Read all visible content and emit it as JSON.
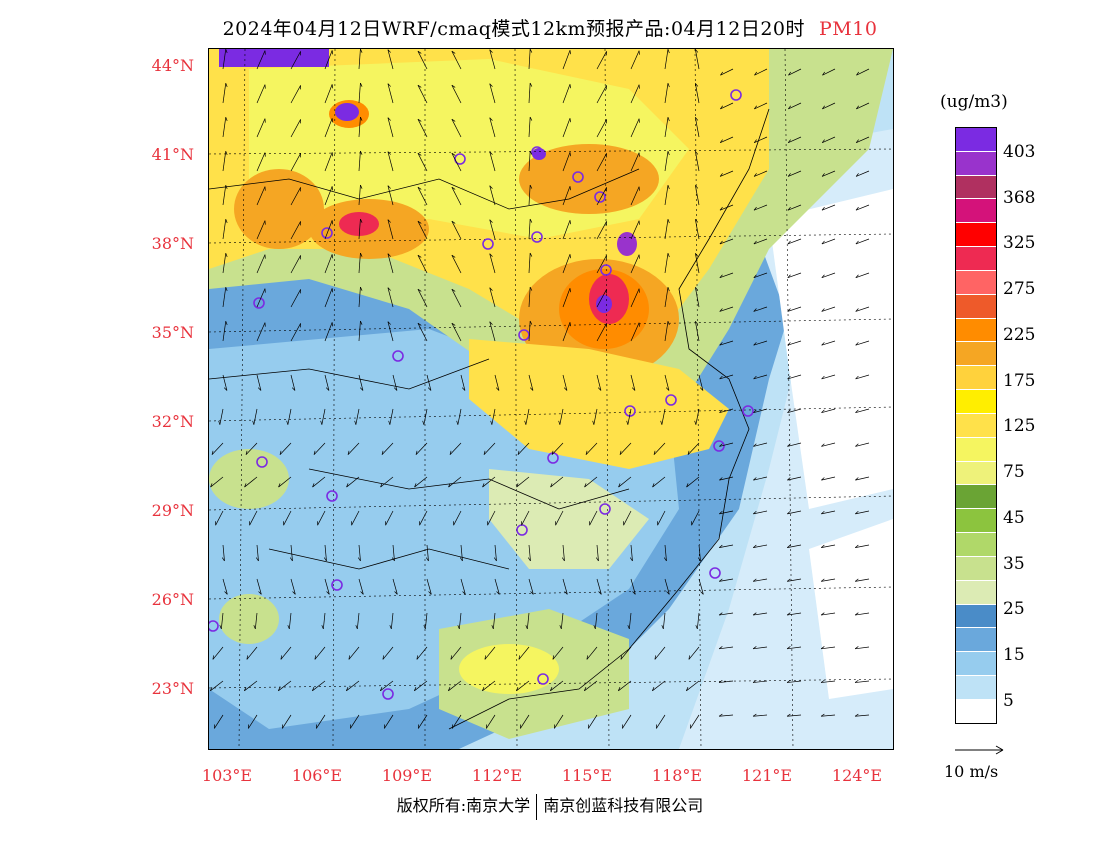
{
  "title": {
    "text": "2024年04月12日WRF/cmaq模式12km预报产品:04月12日20时",
    "variable": "PM10"
  },
  "map": {
    "lat_labels": [
      "44°N",
      "41°N",
      "38°N",
      "35°N",
      "32°N",
      "29°N",
      "26°N",
      "23°N"
    ],
    "lon_labels": [
      "103°E",
      "106°E",
      "109°E",
      "112°E",
      "115°E",
      "118°E",
      "121°E",
      "124°E"
    ]
  },
  "legend": {
    "unit": "(ug/m3)",
    "labels": [
      "403",
      "368",
      "325",
      "275",
      "225",
      "175",
      "125",
      "75",
      "45",
      "35",
      "25",
      "15",
      "5"
    ],
    "colors": [
      "#7b2be2",
      "#9933cc",
      "#b03060",
      "#d4127a",
      "#ff0000",
      "#ee2a52",
      "#ff6464",
      "#ee5a2a",
      "#ff8c00",
      "#f5a623",
      "#ffd23c",
      "#ffee00",
      "#ffe14a",
      "#f5f560",
      "#eef27a",
      "#6aa434",
      "#8cc43e",
      "#b0d869",
      "#c8e18e",
      "#dcebb4",
      "#4a8cc8",
      "#6aa8dc",
      "#96ccee",
      "#bee2f6",
      "#ffffff"
    ]
  },
  "wind_key": {
    "label": "10 m/s"
  },
  "footer": {
    "left": "版权所有:南京大学",
    "right": "南京创蓝科技有限公司"
  }
}
